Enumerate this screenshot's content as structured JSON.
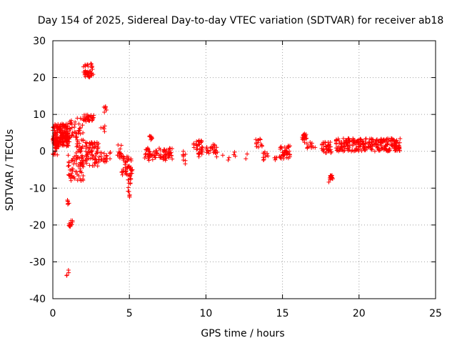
{
  "chart_data": {
    "type": "scatter",
    "title": "Day 154 of 2025, Sidereal Day-to-day VTEC variation (SDTVAR) for receiver ab18",
    "xlabel": "GPS time / hours",
    "ylabel": "SDTVAR / TECUs",
    "xlim": [
      0,
      25
    ],
    "ylim": [
      -40,
      30
    ],
    "xticks": [
      0,
      5,
      10,
      15,
      20,
      25
    ],
    "yticks": [
      -40,
      -30,
      -20,
      -10,
      0,
      10,
      20,
      30
    ],
    "grid": true,
    "marker": "+",
    "marker_color": "#ff0000",
    "series": [
      {
        "name": "SDTVAR",
        "clusters": [
          {
            "x0": 0.0,
            "x1": 1.0,
            "y0": 2.5,
            "y1": 7.5,
            "n": 130
          },
          {
            "x0": 0.0,
            "x1": 1.1,
            "y0": 1.0,
            "y1": 4.0,
            "n": 60
          },
          {
            "x0": 0.0,
            "x1": 0.3,
            "y0": -1.0,
            "y1": 2.5,
            "n": 20
          },
          {
            "x0": 1.0,
            "x1": 2.0,
            "y0": -8.5,
            "y1": -1.0,
            "n": 55
          },
          {
            "x0": 1.0,
            "x1": 2.0,
            "y0": 2.5,
            "y1": 9.0,
            "n": 45
          },
          {
            "x0": 2.0,
            "x1": 2.7,
            "y0": 8.0,
            "y1": 10.0,
            "n": 35
          },
          {
            "x0": 2.0,
            "x1": 2.7,
            "y0": 20.0,
            "y1": 24.0,
            "n": 40
          },
          {
            "x0": 1.5,
            "x1": 3.0,
            "y0": -4.0,
            "y1": 2.5,
            "n": 100
          },
          {
            "x0": 0.95,
            "x1": 1.15,
            "y0": -14.5,
            "y1": -13.0,
            "n": 6
          },
          {
            "x0": 1.05,
            "x1": 1.3,
            "y0": -20.5,
            "y1": -18.5,
            "n": 12
          },
          {
            "x0": 0.9,
            "x1": 1.1,
            "y0": -34.0,
            "y1": -32.0,
            "n": 4
          },
          {
            "x0": 3.3,
            "x1": 3.5,
            "y0": 10.5,
            "y1": 12.5,
            "n": 8
          },
          {
            "x0": 3.1,
            "x1": 3.4,
            "y0": 5.0,
            "y1": 7.0,
            "n": 5
          },
          {
            "x0": 3.0,
            "x1": 4.0,
            "y0": -3.0,
            "y1": 0.0,
            "n": 20
          },
          {
            "x0": 4.2,
            "x1": 4.6,
            "y0": -2.0,
            "y1": 2.0,
            "n": 15
          },
          {
            "x0": 4.5,
            "x1": 5.2,
            "y0": -6.5,
            "y1": -1.0,
            "n": 45
          },
          {
            "x0": 4.9,
            "x1": 5.1,
            "y0": -12.5,
            "y1": -6.0,
            "n": 16
          },
          {
            "x0": 6.0,
            "x1": 7.8,
            "y0": -2.5,
            "y1": 1.0,
            "n": 80
          },
          {
            "x0": 6.3,
            "x1": 6.5,
            "y0": 3.0,
            "y1": 4.5,
            "n": 8
          },
          {
            "x0": 8.5,
            "x1": 8.7,
            "y0": -3.5,
            "y1": 0.0,
            "n": 8
          },
          {
            "x0": 9.2,
            "x1": 9.8,
            "y0": 0.5,
            "y1": 3.0,
            "n": 25
          },
          {
            "x0": 9.5,
            "x1": 9.8,
            "y0": -1.5,
            "y1": 0.5,
            "n": 10
          },
          {
            "x0": 10.0,
            "x1": 10.8,
            "y0": -1.5,
            "y1": 2.0,
            "n": 25
          },
          {
            "x0": 11.0,
            "x1": 12.8,
            "y0": -2.5,
            "y1": 0.5,
            "n": 8
          },
          {
            "x0": 13.2,
            "x1": 13.7,
            "y0": 1.0,
            "y1": 3.5,
            "n": 14
          },
          {
            "x0": 13.7,
            "x1": 14.1,
            "y0": -2.5,
            "y1": 0.0,
            "n": 10
          },
          {
            "x0": 14.4,
            "x1": 14.7,
            "y0": -2.5,
            "y1": -1.5,
            "n": 4
          },
          {
            "x0": 14.8,
            "x1": 15.5,
            "y0": -2.0,
            "y1": 1.5,
            "n": 40
          },
          {
            "x0": 16.2,
            "x1": 16.6,
            "y0": 3.0,
            "y1": 5.0,
            "n": 18
          },
          {
            "x0": 16.4,
            "x1": 17.2,
            "y0": 0.5,
            "y1": 2.5,
            "n": 12
          },
          {
            "x0": 17.5,
            "x1": 18.2,
            "y0": -0.5,
            "y1": 2.5,
            "n": 35
          },
          {
            "x0": 17.9,
            "x1": 18.3,
            "y0": -8.5,
            "y1": -6.5,
            "n": 14
          },
          {
            "x0": 18.5,
            "x1": 22.7,
            "y0": 0.0,
            "y1": 3.5,
            "n": 260
          }
        ]
      }
    ]
  }
}
